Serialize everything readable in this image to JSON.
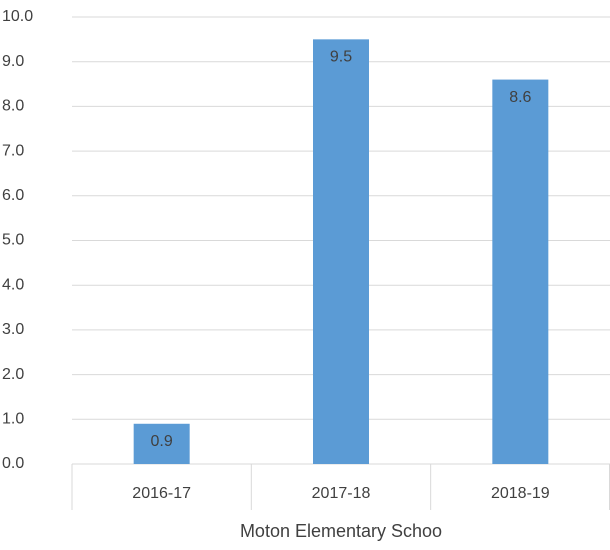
{
  "chart_data": {
    "type": "bar",
    "categories": [
      "2016-17",
      "2017-18",
      "2018-19"
    ],
    "values": [
      0.9,
      9.5,
      8.6
    ],
    "color": "#5b9bd5",
    "xlabel": "Moton Elementary Schoo",
    "ylim": [
      0,
      10
    ],
    "yticks": [
      {
        "value": 0,
        "label": "0.0"
      },
      {
        "value": 1,
        "label": "1.0"
      },
      {
        "value": 2,
        "label": "2.0"
      },
      {
        "value": 3,
        "label": "3.0"
      },
      {
        "value": 4,
        "label": "4.0"
      },
      {
        "value": 5,
        "label": "5.0"
      },
      {
        "value": 6,
        "label": "6.0"
      },
      {
        "value": 7,
        "label": "7.0"
      },
      {
        "value": 8,
        "label": "8.0"
      },
      {
        "value": 9,
        "label": "9.0"
      },
      {
        "value": 10,
        "label": "10.0"
      }
    ],
    "grid": true
  }
}
